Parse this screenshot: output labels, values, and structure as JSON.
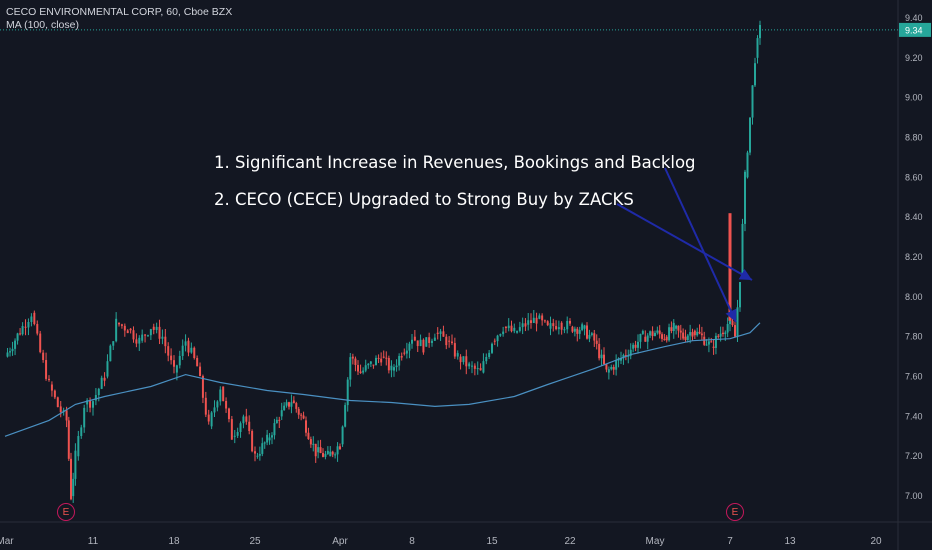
{
  "header": {
    "symbol_line": "CECO ENVIRONMENTAL CORP, 60, Cboe BZX",
    "indicator_line": "MA (100, close)"
  },
  "annotations": {
    "line1": "1. Significant Increase in Revenues, Bookings and Backlog",
    "line2": "2. CECO (CECE) Upgraded to Strong Buy by ZACKS"
  },
  "earnings_marker": "E",
  "colors": {
    "background": "#131722",
    "up": "#26a69a",
    "down": "#ef5350",
    "ma": "#4a90c2",
    "arrow": "#1f2aa8",
    "last_price_bg": "#26a69a",
    "axis_text": "#b2b5be"
  },
  "chart_data": {
    "type": "candlestick",
    "y_ticks": [
      "7.00",
      "7.20",
      "7.40",
      "7.60",
      "7.80",
      "8.00",
      "8.20",
      "8.40",
      "8.60",
      "8.80",
      "9.00",
      "9.20",
      "9.40"
    ],
    "ylim": [
      6.88,
      9.48
    ],
    "x_tick_labels": [
      "Mar",
      "11",
      "18",
      "25",
      "Apr",
      "8",
      "15",
      "22",
      "May",
      "7",
      "13",
      "20"
    ],
    "last_price": "9.34",
    "last_price_value": 9.34,
    "earnings_at": [
      "Mar 8",
      "May 8"
    ],
    "ma_series": {
      "name": "MA (100, close)",
      "points": [
        [
          "Mar 1",
          7.3
        ],
        [
          "Mar 6",
          7.38
        ],
        [
          "Mar 9",
          7.46
        ],
        [
          "Mar 12",
          7.5
        ],
        [
          "Mar 16",
          7.55
        ],
        [
          "Mar 19",
          7.61
        ],
        [
          "Mar 22",
          7.57
        ],
        [
          "Mar 26",
          7.53
        ],
        [
          "Mar 29",
          7.51
        ],
        [
          "Apr 2",
          7.48
        ],
        [
          "Apr 6",
          7.47
        ],
        [
          "Apr 10",
          7.45
        ],
        [
          "Apr 13",
          7.46
        ],
        [
          "Apr 17",
          7.5
        ],
        [
          "Apr 20",
          7.56
        ],
        [
          "Apr 24",
          7.64
        ],
        [
          "Apr 27",
          7.71
        ],
        [
          "Apr 30",
          7.75
        ],
        [
          "May 3",
          7.78
        ],
        [
          "May 7",
          7.79
        ],
        [
          "May 9",
          7.82
        ],
        [
          "May 10",
          7.87
        ]
      ]
    },
    "price_path": [
      [
        "Mar 1",
        7.7
      ],
      [
        "Mar 3",
        7.85
      ],
      [
        "Mar 4",
        7.92
      ],
      [
        "Mar 5",
        7.72
      ],
      [
        "Mar 6",
        7.56
      ],
      [
        "Mar 7",
        7.45
      ],
      [
        "Mar 8",
        7.38
      ],
      [
        "Mar 8.5",
        7.0
      ],
      [
        "Mar 9",
        7.2
      ],
      [
        "Mar 10",
        7.46
      ],
      [
        "Mar 11",
        7.48
      ],
      [
        "Mar 12",
        7.6
      ],
      [
        "Mar 13",
        7.87
      ],
      [
        "Mar 14",
        7.84
      ],
      [
        "Mar 15",
        7.78
      ],
      [
        "Mar 16",
        7.85
      ],
      [
        "Mar 17",
        7.8
      ],
      [
        "Mar 18",
        7.62
      ],
      [
        "Mar 19",
        7.78
      ],
      [
        "Mar 20",
        7.65
      ],
      [
        "Mar 21",
        7.35
      ],
      [
        "Mar 22",
        7.55
      ],
      [
        "Mar 23",
        7.3
      ],
      [
        "Mar 24",
        7.4
      ],
      [
        "Mar 25",
        7.2
      ],
      [
        "Mar 26",
        7.28
      ],
      [
        "Mar 27",
        7.4
      ],
      [
        "Mar 28",
        7.48
      ],
      [
        "Mar 29",
        7.38
      ],
      [
        "Mar 30",
        7.22
      ],
      [
        "Mar 31",
        7.2
      ],
      [
        "Apr 1",
        7.26
      ],
      [
        "Apr 2",
        7.7
      ],
      [
        "Apr 3",
        7.62
      ],
      [
        "Apr 4",
        7.66
      ],
      [
        "Apr 5",
        7.7
      ],
      [
        "Apr 6",
        7.63
      ],
      [
        "Apr 7",
        7.72
      ],
      [
        "Apr 8",
        7.8
      ],
      [
        "Apr 9",
        7.75
      ],
      [
        "Apr 10",
        7.82
      ],
      [
        "Apr 11",
        7.78
      ],
      [
        "Apr 12",
        7.7
      ],
      [
        "Apr 13",
        7.65
      ],
      [
        "Apr 14",
        7.62
      ],
      [
        "Apr 15",
        7.78
      ],
      [
        "Apr 16",
        7.85
      ],
      [
        "Apr 17",
        7.82
      ],
      [
        "Apr 18",
        7.86
      ],
      [
        "Apr 19",
        7.89
      ],
      [
        "Apr 20",
        7.84
      ],
      [
        "Apr 21",
        7.87
      ],
      [
        "Apr 22",
        7.85
      ],
      [
        "Apr 23",
        7.84
      ],
      [
        "Apr 24",
        7.78
      ],
      [
        "Apr 25",
        7.62
      ],
      [
        "Apr 26",
        7.68
      ],
      [
        "Apr 27",
        7.74
      ],
      [
        "Apr 28",
        7.8
      ],
      [
        "Apr 29",
        7.82
      ],
      [
        "Apr 30",
        7.8
      ],
      [
        "May 1",
        7.84
      ],
      [
        "May 2",
        7.8
      ],
      [
        "May 3",
        7.83
      ],
      [
        "May 4",
        7.8
      ],
      [
        "May 5",
        7.75
      ],
      [
        "May 6",
        7.82
      ],
      [
        "May 7",
        7.88
      ],
      [
        "May 7.5",
        7.8
      ],
      [
        "May 8",
        8.1
      ],
      [
        "May 8.5",
        8.6
      ],
      [
        "May 9",
        8.9
      ],
      [
        "May 9.5",
        9.2
      ],
      [
        "May 10",
        9.34
      ]
    ],
    "big_red_candle": {
      "at": "May 7",
      "open": 8.42,
      "close": 7.88
    }
  }
}
